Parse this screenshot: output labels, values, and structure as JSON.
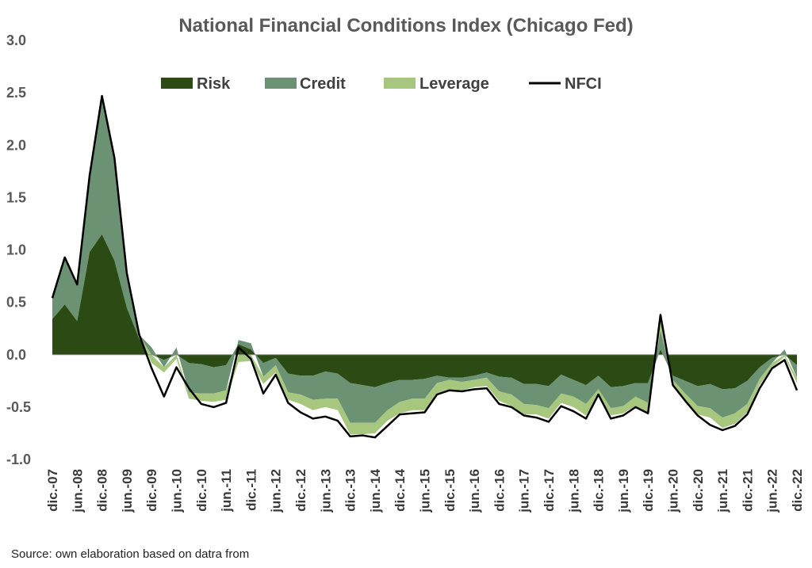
{
  "chart_data": {
    "type": "area",
    "title": "National Financial Conditions Index (Chicago Fed)",
    "xlabel": "",
    "ylabel": "",
    "ylim": [
      -1.0,
      3.0
    ],
    "yticks": [
      "3.0",
      "2.5",
      "2.0",
      "1.5",
      "1.0",
      "0.5",
      "0.0",
      "-0.5",
      "-1.0"
    ],
    "stacked": true,
    "grid": false,
    "legend_position": "top",
    "x_tick_labels": [
      "dic.-07",
      "jun.-08",
      "dic.-08",
      "jun.-09",
      "dic.-09",
      "jun.-10",
      "dic.-10",
      "jun.-11",
      "dic.-11",
      "jun.-12",
      "dic.-12",
      "jun.-13",
      "dic.-13",
      "jun.-14",
      "dic.-14",
      "jun.-15",
      "dic.-15",
      "jun.-16",
      "dic.-16",
      "jun.-17",
      "dic.-17",
      "jun.-18",
      "dic.-18",
      "jun.-19",
      "dic.-19",
      "jun.-20",
      "dic.-20",
      "jun.-21",
      "dic.-21",
      "jun.-22",
      "dic.-22"
    ],
    "x": [
      "dic.-07",
      "mar.-08",
      "jun.-08",
      "sep.-08",
      "dic.-08",
      "mar.-09",
      "jun.-09",
      "sep.-09",
      "dic.-09",
      "mar.-10",
      "jun.-10",
      "sep.-10",
      "dic.-10",
      "mar.-11",
      "jun.-11",
      "sep.-11",
      "dic.-11",
      "mar.-12",
      "jun.-12",
      "sep.-12",
      "dic.-12",
      "mar.-13",
      "jun.-13",
      "sep.-13",
      "dic.-13",
      "mar.-14",
      "jun.-14",
      "sep.-14",
      "dic.-14",
      "mar.-15",
      "jun.-15",
      "sep.-15",
      "dic.-15",
      "mar.-16",
      "jun.-16",
      "sep.-16",
      "dic.-16",
      "mar.-17",
      "jun.-17",
      "sep.-17",
      "dic.-17",
      "mar.-18",
      "jun.-18",
      "sep.-18",
      "dic.-18",
      "mar.-19",
      "jun.-19",
      "sep.-19",
      "dic.-19",
      "mar.-20",
      "jun.-20",
      "sep.-20",
      "dic.-20",
      "mar.-21",
      "jun.-21",
      "sep.-21",
      "dic.-21",
      "mar.-22",
      "jun.-22",
      "sep.-22",
      "dic.-22"
    ],
    "series": [
      {
        "name": "Risk",
        "kind": "area",
        "color": "#2b4a14",
        "values": [
          0.34,
          0.48,
          0.32,
          0.98,
          1.15,
          0.9,
          0.45,
          0.15,
          0.0,
          -0.05,
          0.0,
          -0.08,
          -0.09,
          -0.12,
          -0.1,
          0.1,
          0.05,
          -0.08,
          -0.03,
          -0.18,
          -0.2,
          -0.2,
          -0.16,
          -0.18,
          -0.27,
          -0.29,
          -0.31,
          -0.27,
          -0.24,
          -0.24,
          -0.23,
          -0.2,
          -0.22,
          -0.22,
          -0.2,
          -0.17,
          -0.21,
          -0.22,
          -0.28,
          -0.28,
          -0.3,
          -0.19,
          -0.24,
          -0.29,
          -0.2,
          -0.31,
          -0.3,
          -0.27,
          -0.27,
          0.05,
          -0.2,
          -0.25,
          -0.3,
          -0.28,
          -0.33,
          -0.32,
          -0.25,
          -0.12,
          -0.03,
          0.0,
          -0.1
        ]
      },
      {
        "name": "Credit",
        "kind": "area",
        "color": "#6a9273",
        "values": [
          0.2,
          0.45,
          0.35,
          0.73,
          1.3,
          0.98,
          0.33,
          0.04,
          0.07,
          -0.07,
          0.07,
          -0.28,
          -0.28,
          -0.25,
          -0.24,
          0.04,
          0.06,
          -0.13,
          -0.07,
          -0.18,
          -0.18,
          -0.23,
          -0.26,
          -0.24,
          -0.38,
          -0.36,
          -0.34,
          -0.26,
          -0.21,
          -0.18,
          -0.19,
          -0.07,
          -0.02,
          -0.04,
          -0.04,
          -0.05,
          -0.14,
          -0.16,
          -0.19,
          -0.2,
          -0.21,
          -0.18,
          -0.16,
          -0.18,
          -0.13,
          -0.2,
          -0.19,
          -0.13,
          -0.19,
          0.18,
          -0.04,
          -0.12,
          -0.19,
          -0.23,
          -0.27,
          -0.24,
          -0.22,
          -0.11,
          -0.05,
          0.05,
          -0.12
        ]
      },
      {
        "name": "Leverage",
        "kind": "area",
        "color": "#a7c77f",
        "values": [
          0.0,
          0.0,
          0.0,
          0.0,
          0.0,
          0.0,
          0.0,
          0.0,
          -0.08,
          -0.05,
          -0.04,
          -0.06,
          -0.07,
          -0.08,
          -0.09,
          -0.07,
          -0.06,
          -0.07,
          -0.07,
          -0.07,
          -0.09,
          -0.1,
          -0.08,
          -0.11,
          -0.11,
          -0.11,
          -0.1,
          -0.1,
          -0.11,
          -0.11,
          -0.11,
          -0.1,
          -0.1,
          -0.08,
          -0.07,
          -0.08,
          -0.09,
          -0.11,
          -0.1,
          -0.09,
          -0.1,
          -0.09,
          -0.1,
          -0.11,
          -0.06,
          -0.07,
          -0.07,
          -0.09,
          -0.09,
          0.18,
          -0.04,
          -0.07,
          -0.08,
          -0.09,
          -0.1,
          -0.1,
          -0.08,
          -0.06,
          -0.04,
          -0.02,
          -0.05
        ]
      },
      {
        "name": "NFCI",
        "kind": "line",
        "color": "#000000",
        "values": [
          0.54,
          0.93,
          0.67,
          1.71,
          2.47,
          1.88,
          0.78,
          0.19,
          -0.13,
          -0.4,
          -0.12,
          -0.32,
          -0.47,
          -0.5,
          -0.46,
          0.07,
          -0.04,
          -0.37,
          -0.19,
          -0.46,
          -0.55,
          -0.61,
          -0.59,
          -0.63,
          -0.78,
          -0.77,
          -0.79,
          -0.68,
          -0.57,
          -0.56,
          -0.55,
          -0.38,
          -0.34,
          -0.35,
          -0.33,
          -0.32,
          -0.47,
          -0.5,
          -0.58,
          -0.6,
          -0.64,
          -0.49,
          -0.54,
          -0.61,
          -0.38,
          -0.61,
          -0.58,
          -0.5,
          -0.56,
          0.38,
          -0.29,
          -0.44,
          -0.58,
          -0.67,
          -0.72,
          -0.68,
          -0.57,
          -0.32,
          -0.13,
          -0.05,
          -0.34
        ]
      }
    ]
  },
  "source_text": "Source: own elaboration based on datra from"
}
